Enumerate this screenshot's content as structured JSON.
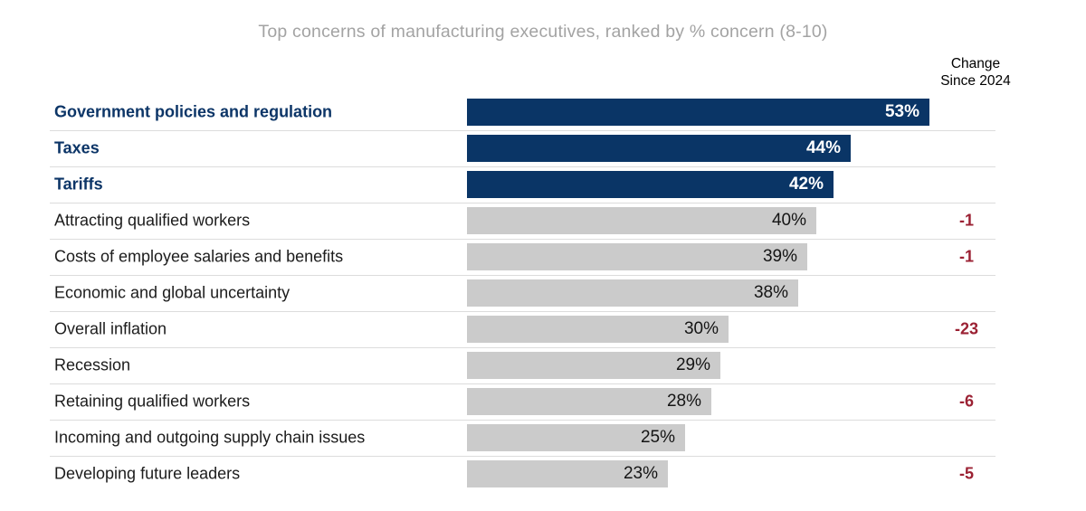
{
  "title": "Top concerns of manufacturing executives, ranked by % concern (8-10)",
  "change_column": {
    "header_line1": "Change",
    "header_line2": "Since 2024"
  },
  "colors": {
    "highlight_bar": "#0a3566",
    "default_bar": "#cbcbcb",
    "highlight_label": "#0c3567",
    "change_red": "#9b2133",
    "title_gray": "#a3a3a3",
    "divider": "#dcdcdc",
    "bar_value_dark": "#141414",
    "bar_value_light": "#ffffff"
  },
  "chart_data": {
    "type": "bar",
    "orientation": "horizontal",
    "title": "Top concerns of manufacturing executives, ranked by % concern (8-10)",
    "value_unit": "%",
    "xlim": [
      0,
      55
    ],
    "grid": false,
    "legend": false,
    "value_label_position": "inside-end",
    "categories": [
      "Government policies and regulation",
      "Taxes",
      "Tariffs",
      "Attracting qualified workers",
      "Costs of employee salaries and benefits",
      "Economic and global uncertainty",
      "Overall inflation",
      "Recession",
      "Retaining qualified workers",
      "Incoming and outgoing supply chain issues",
      "Developing future leaders"
    ],
    "values": [
      53,
      44,
      42,
      40,
      39,
      38,
      30,
      29,
      28,
      25,
      23
    ],
    "value_labels": [
      "53%",
      "44%",
      "42%",
      "40%",
      "39%",
      "38%",
      "30%",
      "29%",
      "28%",
      "25%",
      "23%"
    ],
    "highlighted": [
      true,
      true,
      true,
      false,
      false,
      false,
      false,
      false,
      false,
      false,
      false
    ],
    "change_since_2024": [
      null,
      null,
      null,
      -1,
      -1,
      null,
      -23,
      null,
      -6,
      null,
      -5
    ],
    "change_labels": [
      "",
      "",
      "",
      "-1",
      "-1",
      "",
      "-23",
      "",
      "-6",
      "",
      "-5"
    ]
  }
}
